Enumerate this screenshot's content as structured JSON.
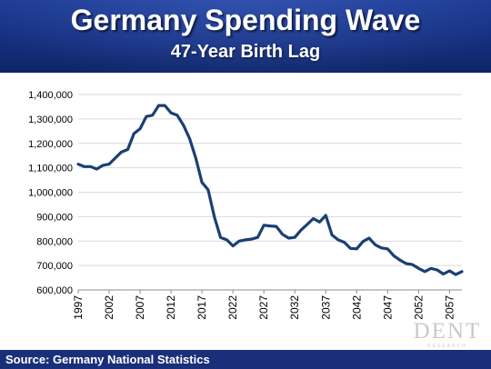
{
  "header": {
    "title": "Germany Spending Wave",
    "subtitle": "47-Year Birth Lag"
  },
  "footer": {
    "source": "Source: Germany National Statistics"
  },
  "logo": {
    "main": "DENT",
    "sub": "RESEARCH"
  },
  "colors": {
    "header_bg": "#1a3588",
    "line": "#1b3f73",
    "grid": "#d9d9d9",
    "footer_bg": "#1a2f7a"
  },
  "chart_data": {
    "type": "line",
    "title": "",
    "xlabel": "",
    "ylabel": "",
    "xlim": [
      1997,
      2059
    ],
    "ylim": [
      600000,
      1400000
    ],
    "grid": true,
    "legend": "none",
    "y_ticks": [
      600000,
      700000,
      800000,
      900000,
      1000000,
      1100000,
      1200000,
      1300000,
      1400000
    ],
    "y_tick_labels": [
      "600,000",
      "700,000",
      "800,000",
      "900,000",
      "1,000,000",
      "1,100,000",
      "1,200,000",
      "1,300,000",
      "1,400,000"
    ],
    "x_ticks": [
      1997,
      2002,
      2007,
      2012,
      2017,
      2022,
      2027,
      2032,
      2037,
      2042,
      2047,
      2052,
      2057
    ],
    "x_tick_labels": [
      "1997",
      "2002",
      "2007",
      "2012",
      "2017",
      "2022",
      "2027",
      "2032",
      "2037",
      "2042",
      "2047",
      "2052",
      "2057"
    ],
    "series": [
      {
        "x": [
          1997,
          1998,
          1999,
          2000,
          2001,
          2002,
          2003,
          2004,
          2005,
          2006,
          2007,
          2008,
          2009,
          2010,
          2011,
          2012,
          2013,
          2014,
          2015,
          2016,
          2017,
          2018,
          2019,
          2020,
          2021,
          2022,
          2023,
          2024,
          2025,
          2026,
          2027,
          2028,
          2029,
          2030,
          2031,
          2032,
          2033,
          2034,
          2035,
          2036,
          2037,
          2038,
          2039,
          2040,
          2041,
          2042,
          2043,
          2044,
          2045,
          2046,
          2047,
          2048,
          2049,
          2050,
          2051,
          2052,
          2053,
          2054,
          2055,
          2056,
          2057,
          2058,
          2059
        ],
        "values": [
          1115000,
          1105000,
          1105000,
          1095000,
          1110000,
          1115000,
          1140000,
          1165000,
          1175000,
          1240000,
          1260000,
          1310000,
          1315000,
          1355000,
          1355000,
          1325000,
          1315000,
          1275000,
          1220000,
          1140000,
          1040000,
          1010000,
          900000,
          815000,
          805000,
          780000,
          800000,
          805000,
          808000,
          815000,
          865000,
          862000,
          860000,
          828000,
          812000,
          815000,
          845000,
          868000,
          892000,
          878000,
          905000,
          825000,
          805000,
          795000,
          770000,
          768000,
          798000,
          812000,
          785000,
          772000,
          768000,
          740000,
          722000,
          708000,
          704000,
          688000,
          675000,
          688000,
          682000,
          665000,
          678000,
          663000,
          675000
        ]
      }
    ]
  }
}
